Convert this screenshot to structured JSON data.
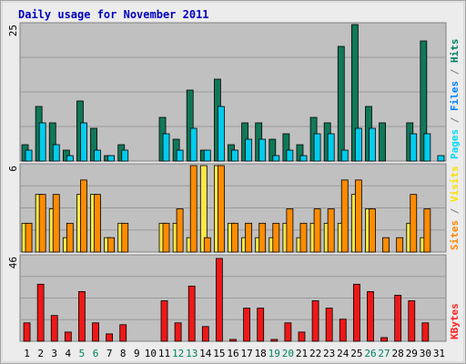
{
  "chart_data": {
    "type": "bar",
    "title": "Daily usage for November 2011",
    "categories": [
      "1",
      "2",
      "3",
      "4",
      "5",
      "6",
      "7",
      "8",
      "9",
      "10",
      "11",
      "12",
      "13",
      "14",
      "15",
      "16",
      "17",
      "18",
      "19",
      "20",
      "21",
      "22",
      "23",
      "24",
      "25",
      "26",
      "27",
      "28",
      "29",
      "30",
      "31"
    ],
    "weekend_days": [
      "5",
      "6",
      "12",
      "13",
      "19",
      "20",
      "26",
      "27"
    ],
    "panels": [
      {
        "name": "hits-files-pages",
        "ymax_label": "25",
        "ymax": 25,
        "right_label": [
          {
            "text": "Pages",
            "color": "#00d8f8"
          },
          {
            "text": " / ",
            "color": "#808080"
          },
          {
            "text": "Files",
            "color": "#0080ff"
          },
          {
            "text": " / ",
            "color": "#808080"
          },
          {
            "text": "Hits",
            "color": "#008060"
          }
        ],
        "series": [
          {
            "key": "hits",
            "color": "#107858",
            "values": [
              3,
              10,
              7,
              2,
              11,
              6,
              1,
              3,
              0,
              0,
              8,
              4,
              13,
              2,
              15,
              3,
              7,
              7,
              4,
              5,
              3,
              8,
              7,
              21,
              25,
              10,
              7,
              0,
              7,
              22,
              0
            ]
          },
          {
            "key": "files",
            "color": "#00ccee",
            "values": [
              2,
              7,
              3,
              1,
              7,
              2,
              1,
              2,
              0,
              0,
              5,
              2,
              6,
              2,
              10,
              2,
              4,
              4,
              1,
              2,
              1,
              5,
              5,
              2,
              6,
              6,
              0,
              0,
              5,
              5,
              1
            ]
          }
        ]
      },
      {
        "name": "visits-sites",
        "ymax_label": "6",
        "ymax": 6,
        "right_label": [
          {
            "text": "Sites",
            "color": "#ff8800"
          },
          {
            "text": " / ",
            "color": "#808080"
          },
          {
            "text": "Visits",
            "color": "#f8e000"
          }
        ],
        "series": [
          {
            "key": "visits",
            "color": "#f8e848",
            "values": [
              2,
              4,
              3,
              1,
              4,
              4,
              1,
              2,
              0,
              0,
              2,
              2,
              1,
              6,
              6,
              2,
              1,
              1,
              1,
              2,
              1,
              2,
              2,
              2,
              4,
              3,
              0,
              0,
              2,
              1,
              0
            ]
          },
          {
            "key": "sites",
            "color": "#ff8c00",
            "values": [
              2,
              4,
              4,
              2,
              5,
              4,
              1,
              2,
              0,
              0,
              2,
              3,
              6,
              1,
              6,
              2,
              2,
              2,
              2,
              3,
              2,
              3,
              3,
              5,
              5,
              3,
              1,
              1,
              4,
              3,
              0
            ]
          }
        ]
      },
      {
        "name": "kbytes",
        "ymax_label": "46",
        "ymax": 46,
        "right_label": [
          {
            "text": "KBytes",
            "color": "#ff2020"
          }
        ],
        "series": [
          {
            "key": "kbytes",
            "color": "#ee1818",
            "values": [
              10,
              31,
              14,
              5,
              27,
              10,
              4,
              9,
              0,
              0,
              22,
              10,
              30,
              8,
              45,
              1,
              18,
              18,
              1,
              10,
              5,
              22,
              18,
              12,
              31,
              27,
              2,
              25,
              22,
              10,
              0
            ]
          }
        ]
      }
    ]
  }
}
